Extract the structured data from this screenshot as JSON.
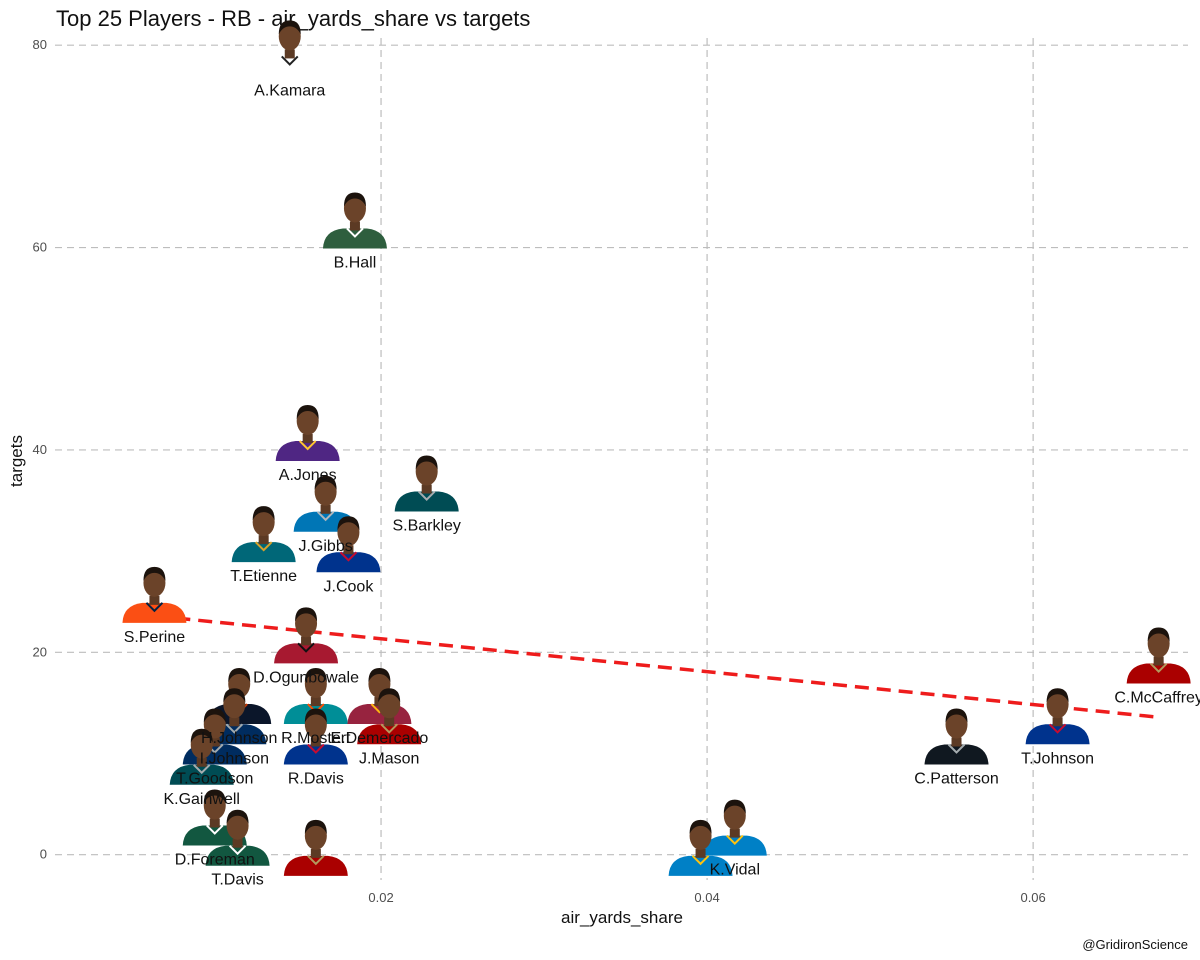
{
  "chart_data": {
    "type": "scatter",
    "title": "Top 25 Players - RB - air_yards_share vs targets",
    "xlabel": "air_yards_share",
    "ylabel": "targets",
    "xlim": [
      0.0,
      0.0695
    ],
    "ylim": [
      -2.5,
      81.5
    ],
    "x_ticks": [
      0.02,
      0.04,
      0.06
    ],
    "x_tick_labels": [
      "0.02",
      "0.04",
      "0.06"
    ],
    "y_ticks": [
      0,
      20,
      40,
      60,
      80
    ],
    "y_tick_labels": [
      "0",
      "20",
      "40",
      "60",
      "80"
    ],
    "grid": true,
    "trendline": {
      "x": [
        0.0061,
        0.0676
      ],
      "y": [
        23.6,
        13.6
      ],
      "color": "#ee1c1c"
    },
    "points": [
      {
        "label": "A.Kamara",
        "x": 0.0144,
        "y": 78,
        "jersey": "#ffffff",
        "accent": "#222222"
      },
      {
        "label": "B.Hall",
        "x": 0.0184,
        "y": 61,
        "jersey": "#2e5e3e",
        "accent": "#ffffff"
      },
      {
        "label": "A.Jones",
        "x": 0.0155,
        "y": 40,
        "jersey": "#4f2683",
        "accent": "#ffc62f"
      },
      {
        "label": "S.Barkley",
        "x": 0.0228,
        "y": 35,
        "jersey": "#004c54",
        "accent": "#a5acaf"
      },
      {
        "label": "J.Gibbs",
        "x": 0.0166,
        "y": 33,
        "jersey": "#0076b6",
        "accent": "#b0b7bc"
      },
      {
        "label": "J.Cook",
        "x": 0.018,
        "y": 29,
        "jersey": "#00338d",
        "accent": "#c60c30"
      },
      {
        "label": "T.Etienne",
        "x": 0.0128,
        "y": 30,
        "jersey": "#006778",
        "accent": "#d7a22a"
      },
      {
        "label": "S.Perine",
        "x": 0.0061,
        "y": 24,
        "jersey": "#fb4f14",
        "accent": "#002244"
      },
      {
        "label": "D.Ogunbowale",
        "x": 0.0154,
        "y": 20,
        "jersey": "#a71930",
        "accent": "#111111"
      },
      {
        "label": "R.Mostert",
        "x": 0.016,
        "y": 14,
        "jersey": "#008e97",
        "accent": "#fc4c02"
      },
      {
        "label": "E.Demercado",
        "x": 0.0199,
        "y": 14,
        "jersey": "#97233f",
        "accent": "#ffb612"
      },
      {
        "label": "J.Mason",
        "x": 0.0205,
        "y": 12,
        "jersey": "#aa0000",
        "accent": "#b3995d"
      },
      {
        "label": "R.Davis",
        "x": 0.016,
        "y": 10,
        "jersey": "#00338d",
        "accent": "#c60c30"
      },
      {
        "label": "H.Johnson",
        "x": 0.0113,
        "y": 14,
        "jersey": "#0b162a",
        "accent": "#c83803"
      },
      {
        "label": "I.Johnson",
        "x": 0.011,
        "y": 12,
        "jersey": "#002c5f",
        "accent": "#a2aaad"
      },
      {
        "label": "T.Goodson",
        "x": 0.0098,
        "y": 10,
        "jersey": "#002c5f",
        "accent": "#a2aaad"
      },
      {
        "label": "K.Gainwell",
        "x": 0.009,
        "y": 8,
        "jersey": "#004c54",
        "accent": "#a5acaf"
      },
      {
        "label": "D.Foreman",
        "x": 0.0098,
        "y": 2,
        "jersey": "#125740",
        "accent": "#ffffff"
      },
      {
        "label": "T.Davis",
        "x": 0.0112,
        "y": 0,
        "jersey": "#125740",
        "accent": "#ffffff"
      },
      {
        "label": "C.Patterson",
        "x": 0.0553,
        "y": 10,
        "jersey": "#101820",
        "accent": "#a5acaf"
      },
      {
        "label": "T.Johnson",
        "x": 0.0615,
        "y": 12,
        "jersey": "#00338d",
        "accent": "#c60c30"
      },
      {
        "label": "C.McCaffrey",
        "x": 0.0677,
        "y": 18,
        "jersey": "#aa0000",
        "accent": "#b3995d"
      },
      {
        "label": "K.Vidal",
        "x": 0.0417,
        "y": 1,
        "jersey": "#0080c6",
        "accent": "#ffc20e"
      },
      {
        "label": "",
        "x": 0.0396,
        "y": -1,
        "jersey": "#0080c6",
        "accent": "#ffc20e"
      },
      {
        "label": "",
        "x": 0.016,
        "y": -1,
        "jersey": "#aa0000",
        "accent": "#b3995d"
      }
    ]
  },
  "caption": "@GridironScience"
}
